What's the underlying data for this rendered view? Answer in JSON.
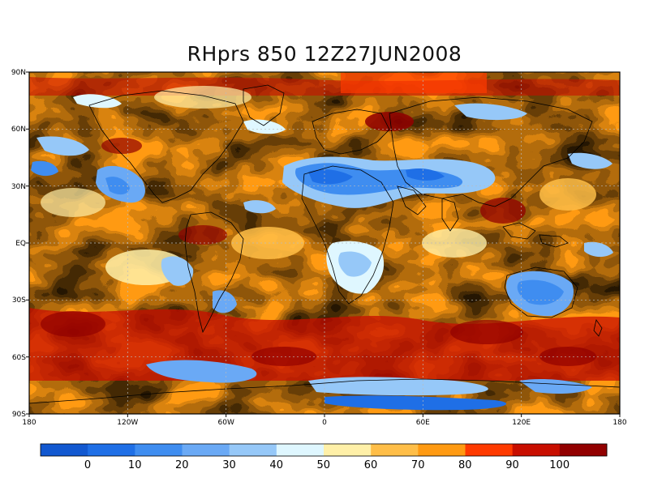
{
  "map": {
    "title": "RHprs 850 12Z27JUN2008",
    "lon_ticks": [
      "180",
      "120W",
      "60W",
      "0",
      "60E",
      "120E",
      "180"
    ],
    "lat_ticks": [
      "90N",
      "60N",
      "30N",
      "EQ",
      "30S",
      "60S",
      "90S"
    ],
    "colorbar": {
      "labels": [
        "0",
        "10",
        "20",
        "30",
        "40",
        "50",
        "60",
        "70",
        "80",
        "90",
        "100"
      ],
      "colors": [
        "#1258d0",
        "#1f6fe6",
        "#3f8df0",
        "#6aa9f5",
        "#96c8f8",
        "#dff7ff",
        "#fff0a8",
        "#ffbe48",
        "#ff9a12",
        "#ff3a00",
        "#c80e00",
        "#920000"
      ]
    }
  }
}
